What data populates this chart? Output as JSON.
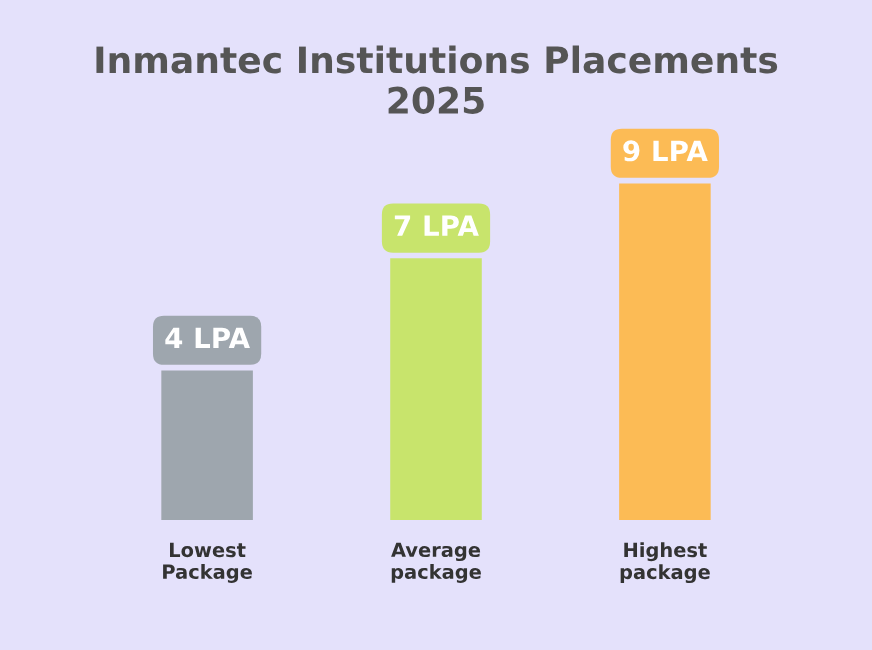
{
  "chart_data": {
    "type": "bar",
    "title": "Inmantec Institutions Placements\n2025",
    "categories": [
      "Lowest\nPackage",
      "Average\npackage",
      "Highest\npackage"
    ],
    "values": [
      4,
      7,
      9
    ],
    "colors": [
      "#9ea6ae",
      "#c8e46c",
      "#fcbb55"
    ],
    "value_labels": [
      "4 LPA",
      "7 LPA",
      "9 LPA"
    ],
    "grid": false,
    "legend": false
  }
}
